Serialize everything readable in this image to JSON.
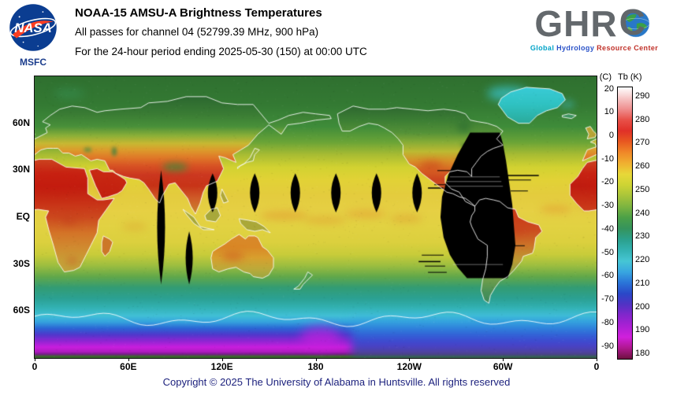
{
  "header": {
    "nasa_logo_text": "NASA",
    "nasa_center": "MSFC",
    "title": "NOAA-15 AMSU-A Brightness Temperatures",
    "subtitle_channel": "All passes for channel 04 (52799.39 MHz, 900 hPa)",
    "subtitle_period": "For the 24-hour period ending 2025-05-30 (150) at 00:00 UTC"
  },
  "ghrc": {
    "acronym_prefix": "GHR",
    "acronym_c": "C",
    "tagline_words": [
      {
        "text": "Global",
        "color": "#00a3c8"
      },
      {
        "text": "Hydrology",
        "color": "#2a52c8"
      },
      {
        "text": "Resource Center",
        "color": "#c03028"
      }
    ]
  },
  "map": {
    "lat_ticks": [
      {
        "label": "60N",
        "deg": 60
      },
      {
        "label": "30N",
        "deg": 30
      },
      {
        "label": "EQ",
        "deg": 0
      },
      {
        "label": "30S",
        "deg": -30
      },
      {
        "label": "60S",
        "deg": -60
      }
    ],
    "lon_ticks": [
      {
        "label": "0",
        "deg": 0
      },
      {
        "label": "60E",
        "deg": 60
      },
      {
        "label": "120E",
        "deg": 120
      },
      {
        "label": "180",
        "deg": 180
      },
      {
        "label": "120W",
        "deg": 240
      },
      {
        "label": "60W",
        "deg": 300
      },
      {
        "label": "0",
        "deg": 360
      }
    ]
  },
  "colorbar": {
    "left_unit": "(C)",
    "right_unit": "Tb (K)",
    "c_ticks": [
      20,
      10,
      0,
      -10,
      -20,
      -30,
      -40,
      -50,
      -60,
      -70,
      -80,
      -90
    ],
    "k_ticks": [
      290,
      280,
      270,
      260,
      250,
      240,
      230,
      220,
      210,
      200,
      190,
      180
    ],
    "gradient": [
      "#ffffff",
      "#f6c6c6",
      "#ef8f8f",
      "#e85048",
      "#e03028",
      "#e85820",
      "#f08828",
      "#f0b030",
      "#e8d838",
      "#cdd434",
      "#a8c43a",
      "#7cb440",
      "#4ba047",
      "#35945c",
      "#2ba08c",
      "#33b2b2",
      "#46c6d4",
      "#38a6e0",
      "#2a74d8",
      "#2a48c8",
      "#5232c4",
      "#8426cc",
      "#ab20d4",
      "#d020dc",
      "#b01890",
      "#6e1040"
    ]
  },
  "footer": {
    "copyright": "Copyright © 2025 The University of Alabama in Huntsville.  All rights reserved"
  },
  "chart_data": {
    "type": "heatmap",
    "title": "NOAA-15 AMSU-A Brightness Temperatures",
    "variable": "Brightness temperature (Tb)",
    "units": [
      "K",
      "C"
    ],
    "instrument": "AMSU-A",
    "satellite": "NOAA-15",
    "channel": "04",
    "frequency_mhz": 52799.39,
    "pressure_level_hpa": 900,
    "period": "24-hour period ending 2025-05-30 (day 150) at 00:00 UTC",
    "projection": "equirectangular global, longitude 0E eastward through 180 back to 0, latitude 90N to 90S",
    "x_tick_labels": [
      "0",
      "60E",
      "120E",
      "180",
      "120W",
      "60W",
      "0"
    ],
    "y_tick_labels": [
      "60N",
      "30N",
      "EQ",
      "30S",
      "60S"
    ],
    "colorbar_ticks_k": [
      290,
      280,
      270,
      260,
      250,
      240,
      230,
      220,
      210,
      200,
      190,
      180
    ],
    "colorbar_ticks_c": [
      20,
      10,
      0,
      -10,
      -20,
      -30,
      -40,
      -50,
      -60,
      -70,
      -80,
      -90
    ],
    "colorbar_range_k": [
      180,
      294
    ],
    "approx_zonal_mean_tb_k": {
      "80N": 248,
      "60N": 252,
      "40N": 258,
      "20N": 266,
      "EQ": 265,
      "20S": 264,
      "40S": 252,
      "60S": 232,
      "70S": 215,
      "80S": 196
    },
    "features": [
      "Warmest Tb (278-292 K, red) over subtropical land: Sahara, Arabia, India, central Australia, Amazon/Brazil, Mexico and SW United States",
      "Yellow (~260-270 K) over tropical and subtropical oceans with orange streaks near the equator",
      "Green (~245-255 K) over mid/high-latitude oceans, Siberia and Canada",
      "Cyan-teal (~220-235 K) over the Southern Ocean and Greenland",
      "Blue to magenta-purple (~185-215 K) over Antarctica, coldest plateau magenta near 0-160E",
      "Black regions are no-data coverage gaps: a large gore over the eastern Pacific and western South America (~100W-60W, 55N-40S), a narrow gore near 80E (30N-45S), and a row of small diamond-shaped gaps near 15N across the Pacific"
    ]
  }
}
